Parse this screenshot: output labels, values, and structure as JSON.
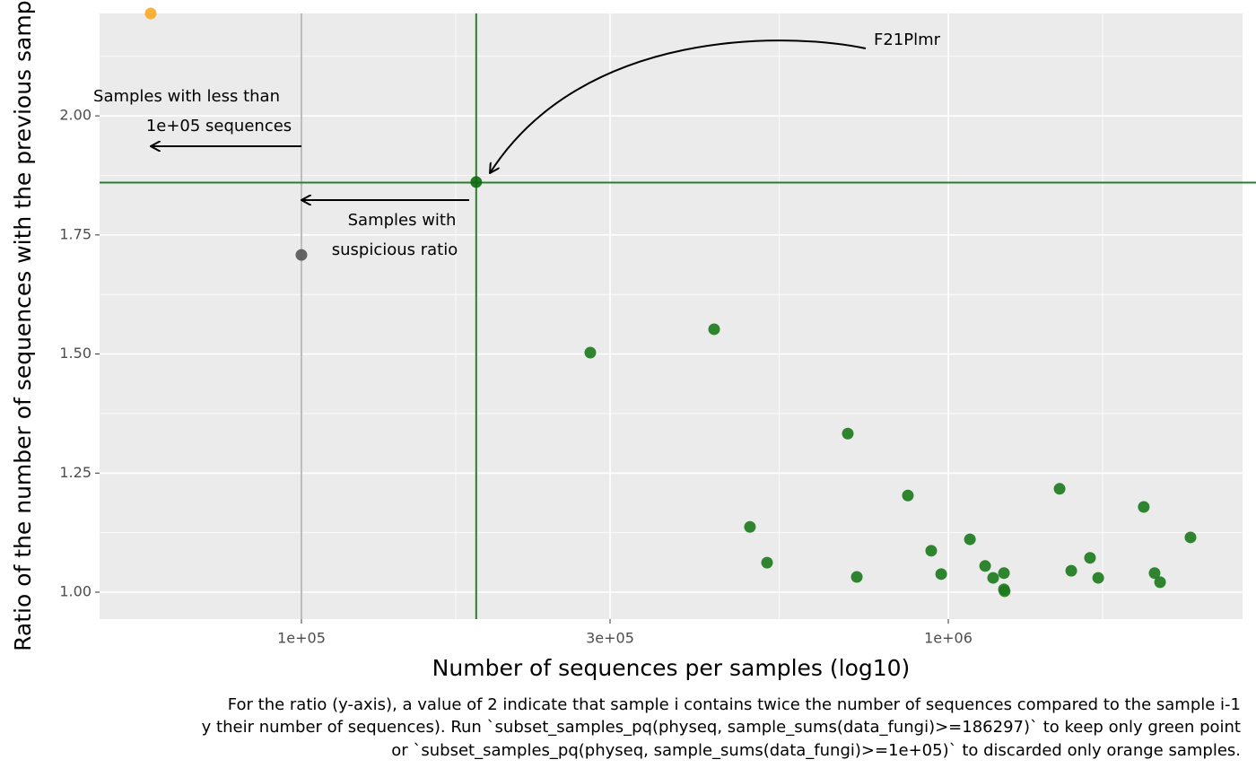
{
  "chart_data": {
    "type": "scatter",
    "xlabel": "Number of sequences per samples (log10)",
    "ylabel": "Ratio of the number of sequences with the previous sample",
    "caption": [
      "For the ratio (y-axis), a value of 2 indicate that sample i contains twice the number of sequences compared to the sample i-1",
      "y their number of sequences). Run `subset_samples_pq(physeq, sample_sums(data_fungi)>=186297)` to keep only green point",
      "or `subset_samples_pq(physeq, sample_sums(data_fungi)>=1e+05)` to discarded only orange samples."
    ],
    "annotations": [
      "Samples with less than",
      "1e+05 sequences",
      "Samples with",
      "suspicious ratio",
      "F21Plmr"
    ],
    "xscale": "log",
    "xlim": [
      48750,
      2850000
    ],
    "ylim": [
      0.9435,
      2.215
    ],
    "xticks": [
      {
        "value": 100000,
        "label": "1e+05"
      },
      {
        "value": 300000,
        "label": "3e+05"
      },
      {
        "value": 1000000,
        "label": "1e+06"
      }
    ],
    "xminor": [
      173205,
      547723,
      1732051
    ],
    "yticks": [
      {
        "value": 1,
        "label": "1.00"
      },
      {
        "value": 1.25,
        "label": "1.25"
      },
      {
        "value": 1.5,
        "label": "1.50"
      },
      {
        "value": 1.75,
        "label": "1.75"
      },
      {
        "value": 2,
        "label": "2.00"
      }
    ],
    "yminor": [
      1.125,
      1.375,
      1.625,
      1.875,
      2.125
    ],
    "grid": true,
    "vlines": [
      {
        "value": 100000,
        "color": "#bdbdbd"
      },
      {
        "value": 186297,
        "color": "#2e7d2e"
      }
    ],
    "hlines": [
      {
        "value": 1.86,
        "color": "#2e7d2e"
      }
    ],
    "series": [
      {
        "color": "#f9a825",
        "x": [
          58480
        ],
        "y": [
          2.215
        ]
      },
      {
        "color": "#555555",
        "x": [
          100000
        ],
        "y": [
          1.708
        ]
      },
      {
        "color": "#0e6a0e",
        "x": [
          186297
        ],
        "y": [
          1.861
        ]
      },
      {
        "color": "#1b7a1b",
        "x": [
          279600,
          434500,
          493600,
          524600,
          699200,
          722000,
          866000,
          941000,
          975000,
          1080000,
          1140000,
          1173000,
          1219000,
          1219000,
          1222000,
          1486000,
          1549000,
          1656000,
          1705000,
          2005000,
          2084000,
          2125000,
          2368000
        ],
        "y": [
          1.503,
          1.552,
          1.137,
          1.062,
          1.333,
          1.032,
          1.203,
          1.087,
          1.038,
          1.111,
          1.055,
          1.03,
          1.04,
          1.006,
          1.002,
          1.217,
          1.045,
          1.072,
          1.03,
          1.179,
          1.04,
          1.021,
          1.115
        ]
      }
    ]
  }
}
